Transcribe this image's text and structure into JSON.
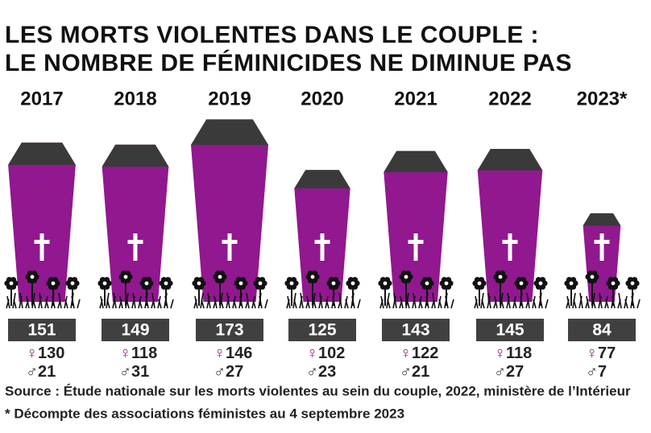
{
  "chart_data": {
    "type": "coffin",
    "title": "LES MORTS VIOLENTES DANS LE COUPLE :",
    "subtitle": "LE NOMBRE DE FÉMINICIDES NE DIMINUE PAS",
    "categories": [
      "2017",
      "2018",
      "2019",
      "2020",
      "2021",
      "2022",
      "2023*"
    ],
    "values": [
      151,
      149,
      173,
      125,
      143,
      145,
      84
    ],
    "color": "#91188f",
    "lid_color": "#3a3a3a",
    "label_box_color": "#404040",
    "series": [
      {
        "name": "♀",
        "color": "#91188f",
        "values": [
          130,
          118,
          146,
          102,
          122,
          118,
          77
        ]
      },
      {
        "name": "♂",
        "color": "#333333",
        "values": [
          21,
          31,
          27,
          23,
          21,
          27,
          7
        ]
      }
    ],
    "source": "Source : Étude nationale sur les morts violentes au sein du couple, 2022, ministère de l’Intérieur",
    "note": "* Décompte des associations féministes au 4 septembre 2023"
  }
}
